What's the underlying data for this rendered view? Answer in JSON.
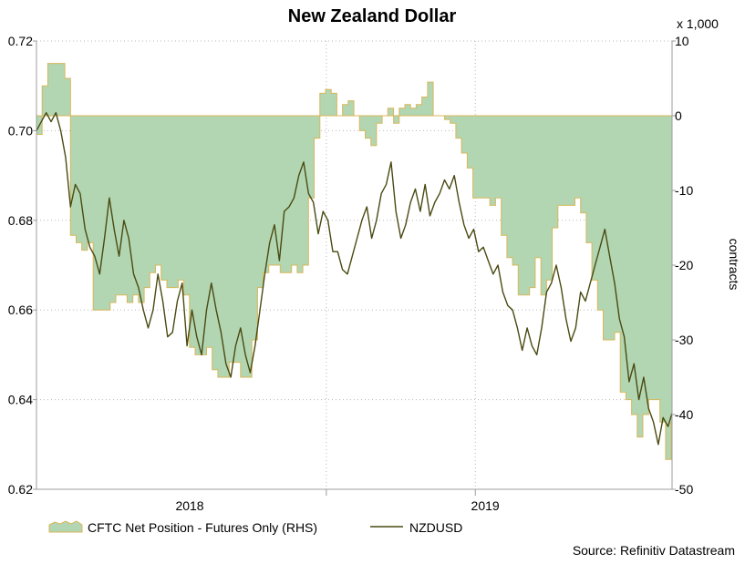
{
  "chart_data": {
    "type": "line",
    "title": "New Zealand Dollar",
    "left_axis": {
      "range": [
        0.62,
        0.72
      ],
      "ticks": [
        "0.72",
        "0.70",
        "0.68",
        "0.66",
        "0.64",
        "0.62"
      ],
      "tick_values": [
        0.72,
        0.7,
        0.68,
        0.66,
        0.64,
        0.62
      ]
    },
    "right_axis": {
      "unit_label": "x 1,000",
      "label": "contracts",
      "range": [
        -50,
        10
      ],
      "ticks": [
        "10",
        "0",
        "-10",
        "-20",
        "-30",
        "-40",
        "-50"
      ],
      "tick_values": [
        10,
        0,
        -10,
        -20,
        -30,
        -40,
        -50
      ]
    },
    "x_axis": {
      "range": [
        "2017-07-07",
        "2019-08-31"
      ],
      "tick_labels": [
        "2018",
        "2019"
      ],
      "tick_dates": [
        "2018-01-01",
        "2019-01-01"
      ],
      "year_boundaries": [
        "2018-06-30",
        "2018-12-31"
      ]
    },
    "grid": "dotted",
    "legend_position": "bottom",
    "series": [
      {
        "name": "CFTC Net Position - Futures Only (RHS)",
        "kind": "area",
        "axis": "right",
        "color": "#b2d6b2",
        "edge_color": "#d8b75a",
        "points": [
          [
            "2017-07-07",
            -2.5
          ],
          [
            "2017-07-14",
            4
          ],
          [
            "2017-07-21",
            7
          ],
          [
            "2017-07-28",
            7
          ],
          [
            "2017-08-04",
            7
          ],
          [
            "2017-08-11",
            5
          ],
          [
            "2017-08-18",
            -16
          ],
          [
            "2017-08-25",
            -17
          ],
          [
            "2017-09-01",
            -18
          ],
          [
            "2017-09-08",
            -17
          ],
          [
            "2017-09-15",
            -26
          ],
          [
            "2017-09-22",
            -26
          ],
          [
            "2017-09-29",
            -26
          ],
          [
            "2017-10-06",
            -25
          ],
          [
            "2017-10-13",
            -24
          ],
          [
            "2017-10-20",
            -24
          ],
          [
            "2017-10-27",
            -25
          ],
          [
            "2017-11-03",
            -24
          ],
          [
            "2017-11-10",
            -25
          ],
          [
            "2017-11-17",
            -23
          ],
          [
            "2017-11-24",
            -21
          ],
          [
            "2017-12-01",
            -20
          ],
          [
            "2017-12-08",
            -22
          ],
          [
            "2017-12-15",
            -23
          ],
          [
            "2017-12-22",
            -23
          ],
          [
            "2017-12-29",
            -22
          ],
          [
            "2018-01-05",
            -24
          ],
          [
            "2018-01-12",
            -31
          ],
          [
            "2018-01-19",
            -32
          ],
          [
            "2018-01-26",
            -32
          ],
          [
            "2018-02-02",
            -31
          ],
          [
            "2018-02-09",
            -34
          ],
          [
            "2018-02-16",
            -35
          ],
          [
            "2018-02-23",
            -35
          ],
          [
            "2018-03-02",
            -33
          ],
          [
            "2018-03-09",
            -33
          ],
          [
            "2018-03-16",
            -35
          ],
          [
            "2018-03-23",
            -35
          ],
          [
            "2018-03-30",
            -30
          ],
          [
            "2018-04-06",
            -23
          ],
          [
            "2018-04-13",
            -21
          ],
          [
            "2018-04-20",
            -20
          ],
          [
            "2018-04-27",
            -20
          ],
          [
            "2018-05-04",
            -21
          ],
          [
            "2018-05-11",
            -21
          ],
          [
            "2018-05-18",
            -20
          ],
          [
            "2018-05-25",
            -21
          ],
          [
            "2018-06-01",
            -20
          ],
          [
            "2018-06-08",
            -11
          ],
          [
            "2018-06-15",
            -3
          ],
          [
            "2018-06-22",
            3
          ],
          [
            "2018-06-29",
            3.5
          ],
          [
            "2018-07-06",
            3
          ],
          [
            "2018-07-13",
            0
          ],
          [
            "2018-07-20",
            1.5
          ],
          [
            "2018-07-27",
            2
          ],
          [
            "2018-08-03",
            0
          ],
          [
            "2018-08-10",
            -2
          ],
          [
            "2018-08-17",
            -3
          ],
          [
            "2018-08-24",
            -4
          ],
          [
            "2018-08-31",
            -1
          ],
          [
            "2018-09-07",
            0
          ],
          [
            "2018-09-14",
            1
          ],
          [
            "2018-09-21",
            -1
          ],
          [
            "2018-09-28",
            1
          ],
          [
            "2018-10-05",
            1.5
          ],
          [
            "2018-10-12",
            1
          ],
          [
            "2018-10-19",
            1.5
          ],
          [
            "2018-10-26",
            2.5
          ],
          [
            "2018-11-02",
            4.5
          ],
          [
            "2018-11-09",
            0
          ],
          [
            "2018-11-16",
            0
          ],
          [
            "2018-11-23",
            -0.5
          ],
          [
            "2018-11-30",
            -1
          ],
          [
            "2018-12-07",
            -3
          ],
          [
            "2018-12-14",
            -5
          ],
          [
            "2018-12-21",
            -7
          ],
          [
            "2018-12-28",
            -11
          ],
          [
            "2019-01-04",
            -11
          ],
          [
            "2019-01-11",
            -11
          ],
          [
            "2019-01-18",
            -12
          ],
          [
            "2019-01-25",
            -11
          ],
          [
            "2019-02-01",
            -16
          ],
          [
            "2019-02-08",
            -19
          ],
          [
            "2019-02-15",
            -20
          ],
          [
            "2019-02-22",
            -24
          ],
          [
            "2019-03-01",
            -24
          ],
          [
            "2019-03-08",
            -23
          ],
          [
            "2019-03-15",
            -19
          ],
          [
            "2019-03-22",
            -24
          ],
          [
            "2019-03-29",
            -22
          ],
          [
            "2019-04-05",
            -15
          ],
          [
            "2019-04-12",
            -12
          ],
          [
            "2019-04-19",
            -12
          ],
          [
            "2019-04-26",
            -12
          ],
          [
            "2019-05-03",
            -11
          ],
          [
            "2019-05-10",
            -13
          ],
          [
            "2019-05-17",
            -17
          ],
          [
            "2019-05-24",
            -22
          ],
          [
            "2019-05-31",
            -26
          ],
          [
            "2019-06-07",
            -30
          ],
          [
            "2019-06-14",
            -30
          ],
          [
            "2019-06-21",
            -29
          ],
          [
            "2019-06-28",
            -37
          ],
          [
            "2019-07-05",
            -38
          ],
          [
            "2019-07-12",
            -40
          ],
          [
            "2019-07-19",
            -43
          ],
          [
            "2019-07-26",
            -40
          ],
          [
            "2019-08-02",
            -38
          ],
          [
            "2019-08-09",
            -38
          ],
          [
            "2019-08-16",
            -41
          ],
          [
            "2019-08-23",
            -46
          ],
          [
            "2019-08-30",
            -41
          ]
        ]
      },
      {
        "name": "NZDUSD",
        "kind": "line",
        "axis": "left",
        "color": "#4a4a12",
        "points": [
          [
            "2017-07-07",
            0.7
          ],
          [
            "2017-07-13",
            0.702
          ],
          [
            "2017-07-19",
            0.704
          ],
          [
            "2017-07-25",
            0.702
          ],
          [
            "2017-07-31",
            0.704
          ],
          [
            "2017-08-06",
            0.7
          ],
          [
            "2017-08-12",
            0.694
          ],
          [
            "2017-08-18",
            0.683
          ],
          [
            "2017-08-24",
            0.688
          ],
          [
            "2017-08-30",
            0.686
          ],
          [
            "2017-09-05",
            0.678
          ],
          [
            "2017-09-11",
            0.674
          ],
          [
            "2017-09-17",
            0.672
          ],
          [
            "2017-09-23",
            0.668
          ],
          [
            "2017-09-29",
            0.676
          ],
          [
            "2017-10-05",
            0.685
          ],
          [
            "2017-10-11",
            0.678
          ],
          [
            "2017-10-17",
            0.672
          ],
          [
            "2017-10-23",
            0.68
          ],
          [
            "2017-10-29",
            0.676
          ],
          [
            "2017-11-04",
            0.668
          ],
          [
            "2017-11-10",
            0.665
          ],
          [
            "2017-11-16",
            0.66
          ],
          [
            "2017-11-22",
            0.656
          ],
          [
            "2017-11-28",
            0.66
          ],
          [
            "2017-12-04",
            0.668
          ],
          [
            "2017-12-10",
            0.662
          ],
          [
            "2017-12-16",
            0.654
          ],
          [
            "2017-12-22",
            0.655
          ],
          [
            "2017-12-28",
            0.662
          ],
          [
            "2018-01-03",
            0.666
          ],
          [
            "2018-01-09",
            0.652
          ],
          [
            "2018-01-15",
            0.66
          ],
          [
            "2018-01-21",
            0.654
          ],
          [
            "2018-01-27",
            0.65
          ],
          [
            "2018-02-02",
            0.66
          ],
          [
            "2018-02-08",
            0.666
          ],
          [
            "2018-02-14",
            0.66
          ],
          [
            "2018-02-20",
            0.655
          ],
          [
            "2018-02-26",
            0.648
          ],
          [
            "2018-03-04",
            0.645
          ],
          [
            "2018-03-10",
            0.652
          ],
          [
            "2018-03-16",
            0.656
          ],
          [
            "2018-03-22",
            0.65
          ],
          [
            "2018-03-28",
            0.646
          ],
          [
            "2018-04-03",
            0.652
          ],
          [
            "2018-04-09",
            0.66
          ],
          [
            "2018-04-15",
            0.668
          ],
          [
            "2018-04-21",
            0.675
          ],
          [
            "2018-04-27",
            0.679
          ],
          [
            "2018-05-03",
            0.671
          ],
          [
            "2018-05-09",
            0.682
          ],
          [
            "2018-05-15",
            0.683
          ],
          [
            "2018-05-21",
            0.685
          ],
          [
            "2018-05-27",
            0.69
          ],
          [
            "2018-06-02",
            0.693
          ],
          [
            "2018-06-08",
            0.686
          ],
          [
            "2018-06-14",
            0.684
          ],
          [
            "2018-06-20",
            0.677
          ],
          [
            "2018-06-26",
            0.682
          ],
          [
            "2018-07-02",
            0.68
          ],
          [
            "2018-07-08",
            0.673
          ],
          [
            "2018-07-14",
            0.673
          ],
          [
            "2018-07-20",
            0.669
          ],
          [
            "2018-07-26",
            0.668
          ],
          [
            "2018-08-01",
            0.672
          ],
          [
            "2018-08-07",
            0.676
          ],
          [
            "2018-08-13",
            0.68
          ],
          [
            "2018-08-19",
            0.683
          ],
          [
            "2018-08-25",
            0.676
          ],
          [
            "2018-08-31",
            0.68
          ],
          [
            "2018-09-06",
            0.686
          ],
          [
            "2018-09-12",
            0.688
          ],
          [
            "2018-09-18",
            0.693
          ],
          [
            "2018-09-24",
            0.682
          ],
          [
            "2018-09-30",
            0.676
          ],
          [
            "2018-10-06",
            0.679
          ],
          [
            "2018-10-12",
            0.684
          ],
          [
            "2018-10-18",
            0.687
          ],
          [
            "2018-10-24",
            0.682
          ],
          [
            "2018-10-30",
            0.688
          ],
          [
            "2018-11-05",
            0.681
          ],
          [
            "2018-11-11",
            0.684
          ],
          [
            "2018-11-17",
            0.686
          ],
          [
            "2018-11-23",
            0.689
          ],
          [
            "2018-11-29",
            0.687
          ],
          [
            "2018-12-05",
            0.69
          ],
          [
            "2018-12-11",
            0.684
          ],
          [
            "2018-12-17",
            0.679
          ],
          [
            "2018-12-23",
            0.676
          ],
          [
            "2018-12-29",
            0.678
          ],
          [
            "2019-01-04",
            0.673
          ],
          [
            "2019-01-10",
            0.674
          ],
          [
            "2019-01-16",
            0.671
          ],
          [
            "2019-01-22",
            0.668
          ],
          [
            "2019-01-28",
            0.67
          ],
          [
            "2019-02-03",
            0.664
          ],
          [
            "2019-02-09",
            0.661
          ],
          [
            "2019-02-15",
            0.66
          ],
          [
            "2019-02-21",
            0.656
          ],
          [
            "2019-02-27",
            0.651
          ],
          [
            "2019-03-05",
            0.656
          ],
          [
            "2019-03-11",
            0.652
          ],
          [
            "2019-03-17",
            0.65
          ],
          [
            "2019-03-23",
            0.656
          ],
          [
            "2019-03-29",
            0.664
          ],
          [
            "2019-04-04",
            0.666
          ],
          [
            "2019-04-10",
            0.67
          ],
          [
            "2019-04-16",
            0.665
          ],
          [
            "2019-04-22",
            0.658
          ],
          [
            "2019-04-28",
            0.653
          ],
          [
            "2019-05-04",
            0.656
          ],
          [
            "2019-05-10",
            0.664
          ],
          [
            "2019-05-16",
            0.662
          ],
          [
            "2019-05-22",
            0.666
          ],
          [
            "2019-05-28",
            0.67
          ],
          [
            "2019-06-03",
            0.674
          ],
          [
            "2019-06-09",
            0.678
          ],
          [
            "2019-06-15",
            0.672
          ],
          [
            "2019-06-21",
            0.666
          ],
          [
            "2019-06-27",
            0.658
          ],
          [
            "2019-07-03",
            0.654
          ],
          [
            "2019-07-09",
            0.644
          ],
          [
            "2019-07-15",
            0.648
          ],
          [
            "2019-07-21",
            0.64
          ],
          [
            "2019-07-27",
            0.645
          ],
          [
            "2019-08-02",
            0.638
          ],
          [
            "2019-08-08",
            0.635
          ],
          [
            "2019-08-14",
            0.63
          ],
          [
            "2019-08-20",
            0.636
          ],
          [
            "2019-08-26",
            0.634
          ],
          [
            "2019-08-31",
            0.637
          ]
        ]
      }
    ],
    "legend": [
      "CFTC Net Position - Futures Only (RHS)",
      "NZDUSD"
    ],
    "source": "Source: Refinitiv Datastream"
  },
  "colors": {
    "axis": "#9c9c9c",
    "grid": "#b8b8b8",
    "area_fill": "#b2d6b2",
    "area_edge": "#d8b75a",
    "line": "#4a4a12",
    "text": "#000000"
  }
}
